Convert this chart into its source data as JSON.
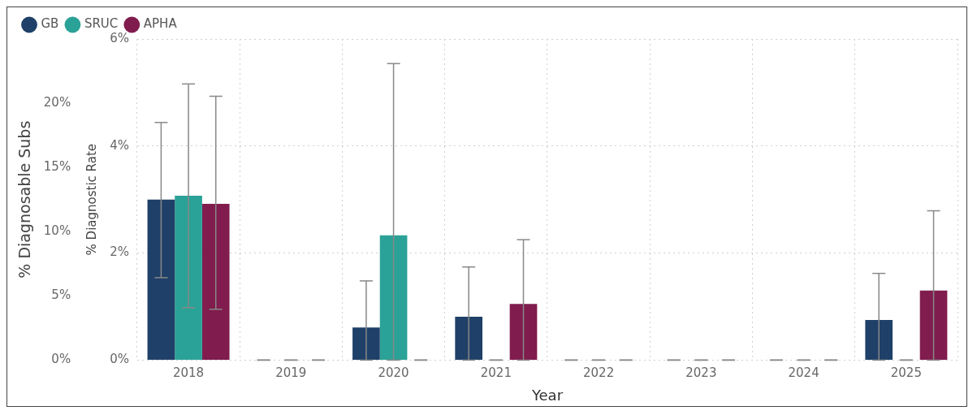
{
  "chart_data": {
    "type": "bar",
    "xlabel": "Year",
    "ylabel": "% Diagnostic Rate",
    "y2label": "% Diagnosable Subs",
    "categories": [
      "2018",
      "2019",
      "2020",
      "2021",
      "2022",
      "2023",
      "2024",
      "2025"
    ],
    "series": [
      {
        "name": "GB",
        "color": "#1f4068",
        "values": [
          3.0,
          0,
          0.61,
          0.81,
          0,
          0,
          0,
          0.75
        ],
        "errors": [
          [
            1.54,
            4.44
          ],
          [
            0,
            0
          ],
          [
            0,
            1.48
          ],
          [
            0,
            1.74
          ],
          [
            0,
            0
          ],
          [
            0,
            0
          ],
          [
            0,
            0
          ],
          [
            0,
            1.62
          ]
        ]
      },
      {
        "name": "SRUC",
        "color": "#2ba297",
        "values": [
          3.07,
          0,
          2.33,
          0,
          0,
          0,
          0,
          0
        ],
        "errors": [
          [
            0.98,
            5.16
          ],
          [
            0,
            0
          ],
          [
            0,
            5.54
          ],
          [
            0,
            0
          ],
          [
            0,
            0
          ],
          [
            0,
            0
          ],
          [
            0,
            0
          ],
          [
            0,
            0
          ]
        ]
      },
      {
        "name": "APHA",
        "color": "#801c4e",
        "values": [
          2.92,
          0,
          0,
          1.05,
          0,
          0,
          0,
          1.3
        ],
        "errors": [
          [
            0.95,
            4.93
          ],
          [
            0,
            0
          ],
          [
            0,
            0
          ],
          [
            0,
            2.25
          ],
          [
            0,
            0
          ],
          [
            0,
            0
          ],
          [
            0,
            0
          ],
          [
            0,
            2.79
          ]
        ]
      }
    ],
    "ylim": [
      0,
      6
    ],
    "yticks": [
      {
        "value": 0,
        "label": "0%"
      },
      {
        "value": 2,
        "label": "2%"
      },
      {
        "value": 4,
        "label": "4%"
      },
      {
        "value": 6,
        "label": "6%"
      }
    ],
    "y2lim": [
      0,
      25
    ],
    "y2ticks": [
      {
        "value": 0,
        "label": "0%"
      },
      {
        "value": 5,
        "label": "5%"
      },
      {
        "value": 10,
        "label": "10%"
      },
      {
        "value": 15,
        "label": "15%"
      },
      {
        "value": 20,
        "label": "20%"
      }
    ],
    "grid": true,
    "legend": "top left"
  }
}
